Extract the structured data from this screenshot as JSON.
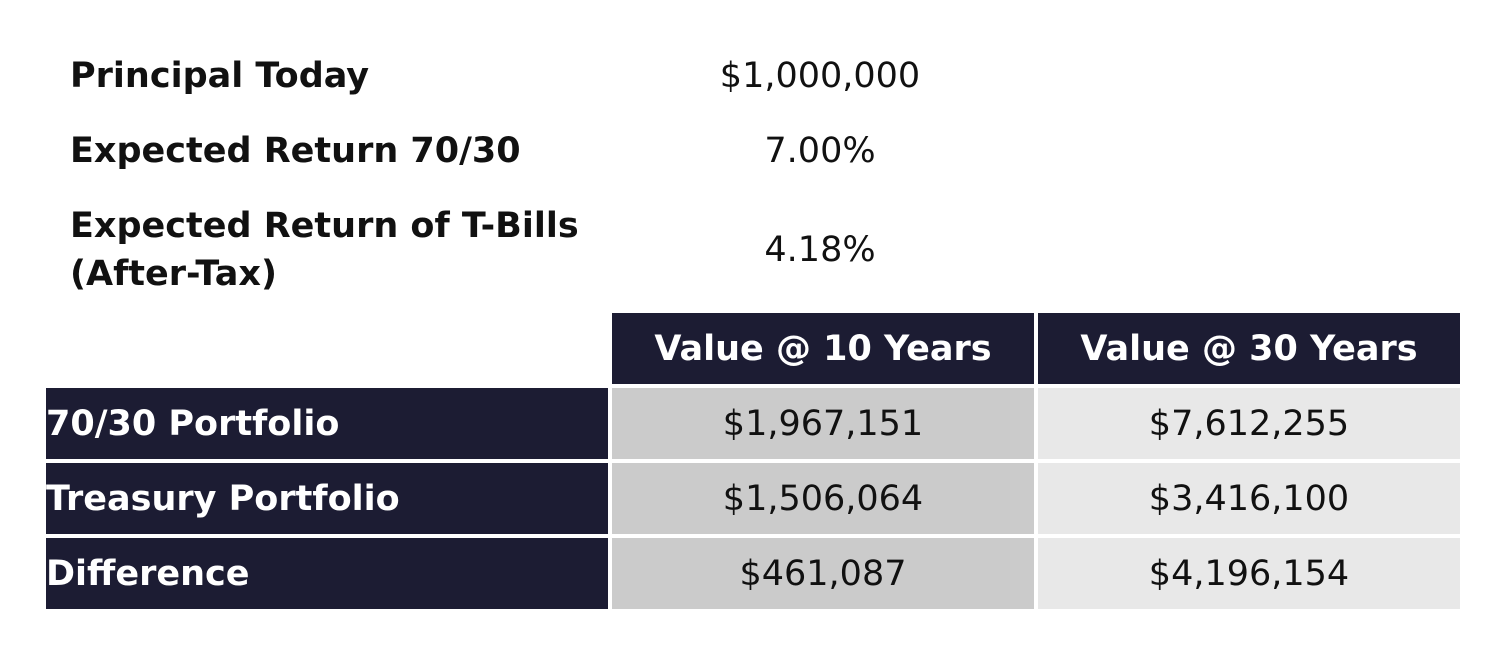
{
  "assumptions": {
    "principal": {
      "label": "Principal Today",
      "value": "$1,000,000"
    },
    "return_7030": {
      "label": "Expected Return 70/30",
      "value": "7.00%"
    },
    "return_tbills": {
      "label_line1": "Expected Return of T-Bills",
      "label_line2": "(After-Tax)",
      "value": "4.18%"
    }
  },
  "results_table": {
    "headers": [
      "Value @ 10 Years",
      "Value @ 30 Years"
    ],
    "rows": [
      {
        "label": "70/30 Portfolio",
        "v10": "$1,967,151",
        "v30": "$7,612,255"
      },
      {
        "label": "Treasury Portfolio",
        "v10": "$1,506,064",
        "v30": "$3,416,100"
      },
      {
        "label": "Difference",
        "v10": "$461,087",
        "v30": "$4,196,154"
      }
    ]
  },
  "colors": {
    "header_navy": "#1c1c33",
    "col10_gray": "#cbcbcb",
    "col30_gray": "#e8e8e8"
  }
}
